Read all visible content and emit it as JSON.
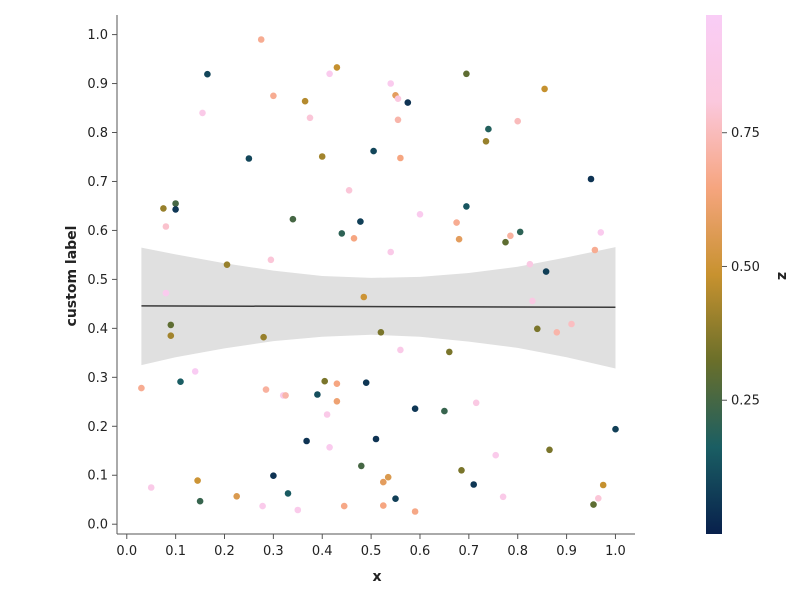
{
  "chart_data": {
    "type": "scatter",
    "xlabel": "x",
    "ylabel": "custom label",
    "colorbar_label": "z",
    "xlim": [
      -0.02,
      1.04
    ],
    "ylim": [
      -0.02,
      1.04
    ],
    "x_ticks": [
      "0.0",
      "0.1",
      "0.2",
      "0.3",
      "0.4",
      "0.5",
      "0.6",
      "0.7",
      "0.8",
      "0.9",
      "1.0"
    ],
    "y_ticks": [
      "0.0",
      "0.1",
      "0.2",
      "0.3",
      "0.4",
      "0.5",
      "0.6",
      "0.7",
      "0.8",
      "0.9",
      "1.0"
    ],
    "colorbar_range": [
      0.0,
      0.97
    ],
    "colorbar_ticks": [
      "0.25",
      "0.50",
      "0.75"
    ],
    "colormap": [
      "#08204c",
      "#1a5e63",
      "#6a6f2a",
      "#c8922f",
      "#f6a57f",
      "#fbc8dd",
      "#f9cdf6"
    ],
    "regression": {
      "line": [
        [
          0.03,
          0.446
        ],
        [
          1.0,
          0.443
        ]
      ],
      "band": [
        [
          0.03,
          0.565,
          0.325
        ],
        [
          0.1,
          0.551,
          0.341
        ],
        [
          0.2,
          0.533,
          0.359
        ],
        [
          0.3,
          0.518,
          0.374
        ],
        [
          0.4,
          0.507,
          0.383
        ],
        [
          0.5,
          0.503,
          0.387
        ],
        [
          0.6,
          0.505,
          0.383
        ],
        [
          0.7,
          0.513,
          0.373
        ],
        [
          0.8,
          0.526,
          0.36
        ],
        [
          0.9,
          0.545,
          0.341
        ],
        [
          1.0,
          0.566,
          0.318
        ]
      ],
      "line_color": "#3a3a3a",
      "band_color": "#e0e0e0"
    },
    "points": [
      [
        0.03,
        0.278,
        0.68
      ],
      [
        0.05,
        0.075,
        0.88
      ],
      [
        0.075,
        0.645,
        0.4
      ],
      [
        0.08,
        0.608,
        0.78
      ],
      [
        0.08,
        0.472,
        0.92
      ],
      [
        0.09,
        0.407,
        0.3
      ],
      [
        0.09,
        0.385,
        0.42
      ],
      [
        0.1,
        0.655,
        0.25
      ],
      [
        0.1,
        0.643,
        0.06
      ],
      [
        0.11,
        0.291,
        0.16
      ],
      [
        0.14,
        0.312,
        0.95
      ],
      [
        0.145,
        0.089,
        0.5
      ],
      [
        0.15,
        0.047,
        0.22
      ],
      [
        0.155,
        0.84,
        0.88
      ],
      [
        0.165,
        0.919,
        0.1
      ],
      [
        0.205,
        0.53,
        0.4
      ],
      [
        0.225,
        0.057,
        0.55
      ],
      [
        0.25,
        0.747,
        0.1
      ],
      [
        0.275,
        0.99,
        0.68
      ],
      [
        0.278,
        0.037,
        0.9
      ],
      [
        0.28,
        0.382,
        0.4
      ],
      [
        0.285,
        0.275,
        0.7
      ],
      [
        0.295,
        0.54,
        0.8
      ],
      [
        0.3,
        0.875,
        0.68
      ],
      [
        0.3,
        0.099,
        0.05
      ],
      [
        0.32,
        0.263,
        0.9
      ],
      [
        0.325,
        0.263,
        0.72
      ],
      [
        0.33,
        0.063,
        0.15
      ],
      [
        0.34,
        0.623,
        0.25
      ],
      [
        0.35,
        0.029,
        0.9
      ],
      [
        0.365,
        0.864,
        0.45
      ],
      [
        0.368,
        0.17,
        0.05
      ],
      [
        0.375,
        0.83,
        0.8
      ],
      [
        0.39,
        0.265,
        0.12
      ],
      [
        0.4,
        0.751,
        0.42
      ],
      [
        0.405,
        0.292,
        0.35
      ],
      [
        0.41,
        0.224,
        0.88
      ],
      [
        0.415,
        0.157,
        0.92
      ],
      [
        0.415,
        0.92,
        0.92
      ],
      [
        0.43,
        0.933,
        0.48
      ],
      [
        0.43,
        0.287,
        0.65
      ],
      [
        0.43,
        0.251,
        0.62
      ],
      [
        0.44,
        0.594,
        0.2
      ],
      [
        0.445,
        0.037,
        0.66
      ],
      [
        0.455,
        0.682,
        0.8
      ],
      [
        0.465,
        0.584,
        0.65
      ],
      [
        0.478,
        0.618,
        0.08
      ],
      [
        0.48,
        0.119,
        0.25
      ],
      [
        0.485,
        0.464,
        0.5
      ],
      [
        0.49,
        0.289,
        0.06
      ],
      [
        0.505,
        0.762,
        0.1
      ],
      [
        0.51,
        0.174,
        0.05
      ],
      [
        0.52,
        0.392,
        0.35
      ],
      [
        0.525,
        0.038,
        0.65
      ],
      [
        0.525,
        0.086,
        0.58
      ],
      [
        0.535,
        0.096,
        0.55
      ],
      [
        0.54,
        0.9,
        0.92
      ],
      [
        0.54,
        0.556,
        0.88
      ],
      [
        0.55,
        0.052,
        0.08
      ],
      [
        0.55,
        0.876,
        0.58
      ],
      [
        0.555,
        0.826,
        0.72
      ],
      [
        0.555,
        0.869,
        0.82
      ],
      [
        0.56,
        0.356,
        0.88
      ],
      [
        0.56,
        0.748,
        0.65
      ],
      [
        0.575,
        0.861,
        0.05
      ],
      [
        0.59,
        0.236,
        0.06
      ],
      [
        0.59,
        0.026,
        0.66
      ],
      [
        0.6,
        0.633,
        0.92
      ],
      [
        0.65,
        0.231,
        0.22
      ],
      [
        0.66,
        0.352,
        0.35
      ],
      [
        0.675,
        0.616,
        0.68
      ],
      [
        0.68,
        0.582,
        0.58
      ],
      [
        0.685,
        0.11,
        0.35
      ],
      [
        0.695,
        0.92,
        0.3
      ],
      [
        0.695,
        0.649,
        0.14
      ],
      [
        0.71,
        0.081,
        0.06
      ],
      [
        0.715,
        0.248,
        0.85
      ],
      [
        0.735,
        0.782,
        0.4
      ],
      [
        0.74,
        0.807,
        0.18
      ],
      [
        0.755,
        0.141,
        0.9
      ],
      [
        0.77,
        0.056,
        0.88
      ],
      [
        0.775,
        0.576,
        0.3
      ],
      [
        0.785,
        0.589,
        0.7
      ],
      [
        0.8,
        0.823,
        0.75
      ],
      [
        0.805,
        0.597,
        0.2
      ],
      [
        0.825,
        0.531,
        0.85
      ],
      [
        0.83,
        0.456,
        0.85
      ],
      [
        0.84,
        0.399,
        0.35
      ],
      [
        0.855,
        0.889,
        0.48
      ],
      [
        0.858,
        0.516,
        0.08
      ],
      [
        0.865,
        0.152,
        0.35
      ],
      [
        0.88,
        0.392,
        0.72
      ],
      [
        0.91,
        0.409,
        0.76
      ],
      [
        0.95,
        0.705,
        0.05
      ],
      [
        0.955,
        0.04,
        0.3
      ],
      [
        0.958,
        0.56,
        0.68
      ],
      [
        0.965,
        0.053,
        0.8
      ],
      [
        0.97,
        0.596,
        0.92
      ],
      [
        0.975,
        0.08,
        0.48
      ],
      [
        1.0,
        0.194,
        0.08
      ]
    ]
  }
}
